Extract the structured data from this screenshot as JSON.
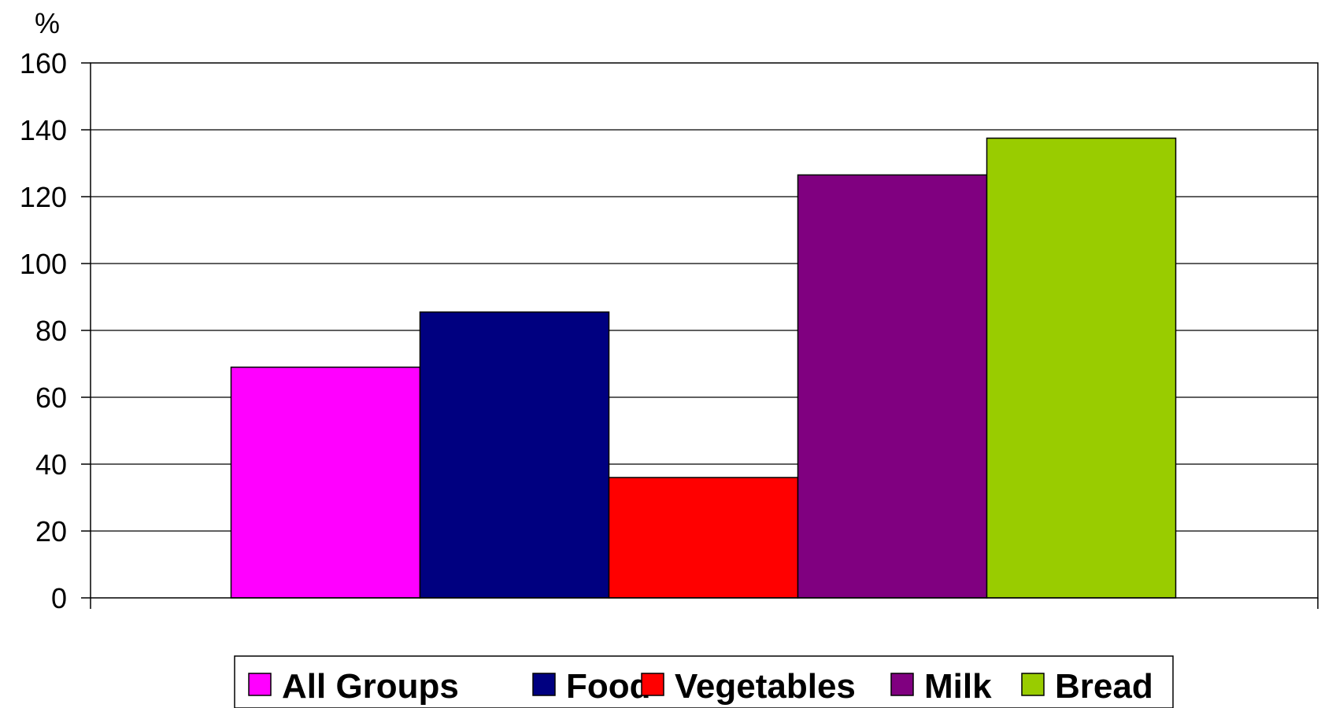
{
  "chart_data": {
    "type": "bar",
    "title": "",
    "xlabel": "",
    "ylabel": "%",
    "ylim": [
      0,
      160
    ],
    "y_ticks": [
      0,
      20,
      40,
      60,
      80,
      100,
      120,
      140,
      160
    ],
    "grid": true,
    "legend_position": "bottom",
    "series": [
      {
        "name": "All Groups",
        "values": [
          69
        ],
        "color": "#FF00FF"
      },
      {
        "name": "Food",
        "values": [
          85.5
        ],
        "color": "#000080"
      },
      {
        "name": "Vegetables",
        "values": [
          36
        ],
        "color": "#FF0000"
      },
      {
        "name": "Milk",
        "values": [
          126.5
        ],
        "color": "#800080"
      },
      {
        "name": "Bread",
        "values": [
          137.5
        ],
        "color": "#99CC00"
      }
    ]
  }
}
